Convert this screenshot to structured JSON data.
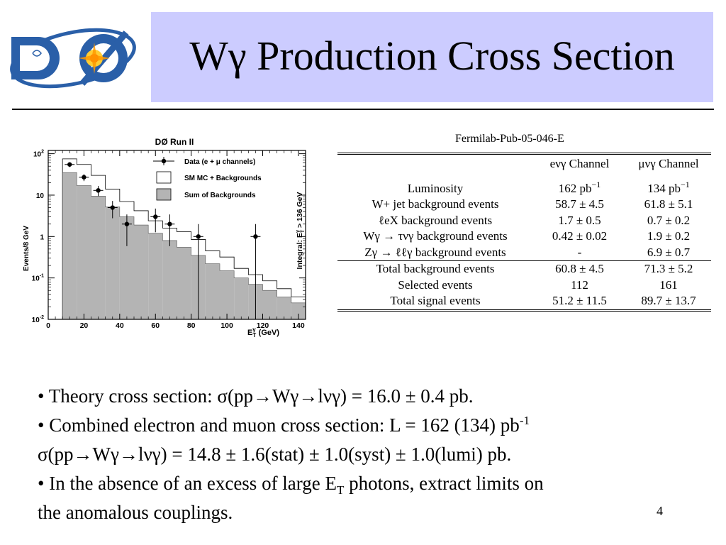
{
  "slide": {
    "title": "Wγ Production Cross Section",
    "page_number": "4",
    "logo_text": "DØ"
  },
  "figure": {
    "header": "DØ Run II",
    "ylabel": "Events/8 GeV",
    "xlabel_main": "E",
    "xlabel_sub": "T",
    "xlabel_sup": "γ",
    "xlabel_unit": "(GeV)",
    "right_label": "Integral: E",
    "right_label_sub": "T",
    "right_label_sup": "γ",
    "right_label_tail": " > 136 GeV",
    "legend": [
      "Data (e + μ channels)",
      "SM MC + Backgrounds",
      "Sum of Backgrounds"
    ],
    "x_ticks": [
      "0",
      "20",
      "40",
      "60",
      "80",
      "100",
      "120",
      "140"
    ],
    "y_ticks": [
      {
        "base": "10",
        "exp": "-2"
      },
      {
        "base": "10",
        "exp": "-1"
      },
      {
        "base": "1",
        "exp": ""
      },
      {
        "base": "10",
        "exp": ""
      },
      {
        "base": "10",
        "exp": "2"
      }
    ]
  },
  "chart_data": {
    "type": "bar",
    "log_y": true,
    "xlim": [
      0,
      144
    ],
    "ylim": [
      0.01,
      120
    ],
    "bin_edges": [
      8,
      16,
      24,
      32,
      40,
      48,
      56,
      64,
      72,
      80,
      88,
      96,
      104,
      112,
      120,
      128,
      136,
      144
    ],
    "series": [
      {
        "name": "SM MC + Backgrounds",
        "values": [
          75,
          55,
          30,
          14,
          7,
          4.2,
          2.4,
          1.6,
          1.3,
          0.85,
          0.45,
          0.32,
          0.17,
          0.12,
          0.085,
          0.055,
          0.035
        ]
      },
      {
        "name": "Sum of Backgrounds",
        "values": [
          35,
          17,
          9.5,
          5.2,
          3,
          1.9,
          1.2,
          0.8,
          0.55,
          0.35,
          0.22,
          0.15,
          0.1,
          0.07,
          0.05,
          0.035,
          0.025
        ]
      },
      {
        "name": "Data (e + μ channels)",
        "x": [
          12,
          20,
          28,
          36,
          44,
          60,
          68,
          84,
          116
        ],
        "values": [
          55,
          27,
          13,
          5,
          2,
          3,
          2,
          1,
          1
        ]
      }
    ]
  },
  "table": {
    "pub_ref": "Fermilab-Pub-05-046-E",
    "col1": "eνγ Channel",
    "col2": "μνγ Channel",
    "rows": [
      {
        "label": "Luminosity",
        "e": "162 pb",
        "e_sup": "−1",
        "mu": "134 pb",
        "mu_sup": "−1"
      },
      {
        "label": "W+ jet background events",
        "e": "58.7 ± 4.5",
        "e_sup": "",
        "mu": "61.8 ± 5.1",
        "mu_sup": ""
      },
      {
        "label": "ℓeX background events",
        "e": "1.7 ± 0.5",
        "e_sup": "",
        "mu": "0.7 ± 0.2",
        "mu_sup": ""
      },
      {
        "label": "Wγ → τνγ background events",
        "e": "0.42 ± 0.02",
        "e_sup": "",
        "mu": "1.9 ± 0.2",
        "mu_sup": ""
      },
      {
        "label": "Zγ → ℓℓγ background events",
        "e": "-",
        "e_sup": "",
        "mu": "6.9 ± 0.7",
        "mu_sup": ""
      }
    ],
    "totals": [
      {
        "label": "Total background events",
        "e": "60.8 ± 4.5",
        "mu": "71.3 ± 5.2"
      },
      {
        "label": "Selected events",
        "e": "112",
        "mu": "161"
      },
      {
        "label": "Total signal events",
        "e": "51.2 ± 11.5",
        "mu": "89.7 ± 13.7"
      }
    ]
  },
  "bullets": {
    "b1": "• Theory cross section: σ(pp→Wγ→lνγ) = 16.0 ± 0.4 pb.",
    "b2": "• Combined electron and muon cross section:    L = 162 (134) pb",
    "b2_sup": "-1",
    "b3": "σ(pp→Wγ→lνγ) = 14.8 ± 1.6(stat) ± 1.0(syst) ± 1.0(lumi) pb.",
    "b4_a": "• In the absence of an excess of large E",
    "b4_sub": "T",
    "b4_b": " photons, extract limits on",
    "b5": "the anomalous couplings."
  }
}
